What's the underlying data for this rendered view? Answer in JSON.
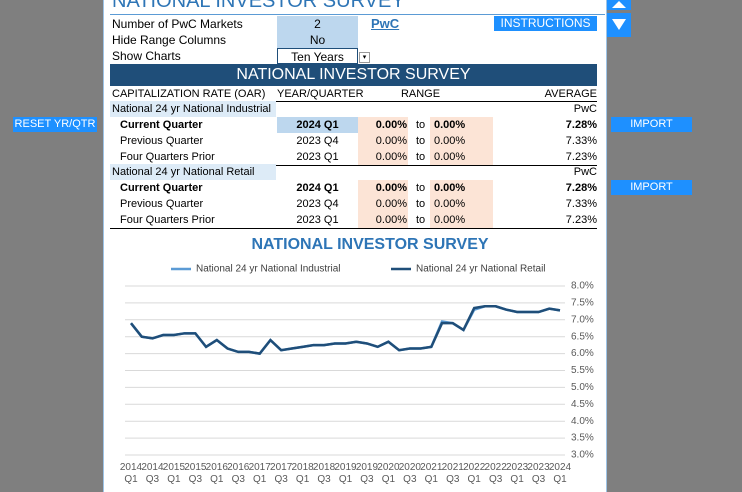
{
  "title": "NATIONAL INVESTOR SURVEY",
  "settings": [
    {
      "label": "Number of PwC Markets",
      "value": "2"
    },
    {
      "label": "Hide Range Columns",
      "value": "No"
    },
    {
      "label": "Show Charts",
      "value": "Ten Years"
    }
  ],
  "link": "PwC",
  "buttons": {
    "instructions": "INSTRUCTIONS",
    "reset": "RESET YR/QTR",
    "import": [
      "IMPORT",
      "IMPORT"
    ]
  },
  "table": {
    "banner": "NATIONAL INVESTOR SURVEY",
    "headers": [
      "CAPITALIZATION RATE (OAR)",
      "YEAR/QUARTER",
      "RANGE",
      "AVERAGE"
    ],
    "groups": [
      {
        "name": "National 24 yr National Industrial",
        "source": "PwC",
        "rows": [
          {
            "label": "Current Quarter",
            "period": "2024 Q1",
            "low": "0.00%",
            "to": "to",
            "high": "0.00%",
            "average": "7.28%"
          },
          {
            "label": "Previous Quarter",
            "period": "2023 Q4",
            "low": "0.00%",
            "to": "to",
            "high": "0.00%",
            "average": "7.33%"
          },
          {
            "label": "Four Quarters Prior",
            "period": "2023 Q1",
            "low": "0.00%",
            "to": "to",
            "high": "0.00%",
            "average": "7.23%"
          }
        ]
      },
      {
        "name": "National 24 yr National Retail",
        "source": "PwC",
        "rows": [
          {
            "label": "Current Quarter",
            "period": "2024 Q1",
            "low": "0.00%",
            "to": "to",
            "high": "0.00%",
            "average": "7.28%"
          },
          {
            "label": "Previous Quarter",
            "period": "2023 Q4",
            "low": "0.00%",
            "to": "to",
            "high": "0.00%",
            "average": "7.33%"
          },
          {
            "label": "Four Quarters Prior",
            "period": "2023 Q1",
            "low": "0.00%",
            "to": "to",
            "high": "0.00%",
            "average": "7.23%"
          }
        ]
      }
    ]
  },
  "chart_data": {
    "type": "line",
    "title": "NATIONAL INVESTOR SURVEY",
    "categories": [
      "2014 Q1",
      null,
      "2014 Q3",
      null,
      "2015 Q1",
      null,
      "2015 Q3",
      null,
      "2016 Q1",
      null,
      "2016 Q3",
      null,
      "2017 Q1",
      null,
      "2017 Q3",
      null,
      "2018 Q1",
      null,
      "2018 Q3",
      null,
      "2019 Q1",
      null,
      "2019 Q3",
      null,
      "2020 Q1",
      null,
      "2020 Q3",
      null,
      "2021 Q1",
      null,
      "2021 Q3",
      null,
      "2022 Q1",
      null,
      "2022 Q3",
      null,
      "2023 Q1",
      null,
      "2023 Q3",
      null,
      "2024 Q1"
    ],
    "series": [
      {
        "name": "National 24 yr National Industrial",
        "color": "#5b9bd5",
        "values": [
          6.9,
          6.5,
          6.45,
          6.55,
          6.55,
          6.6,
          6.6,
          6.2,
          6.4,
          6.15,
          6.05,
          6.05,
          6.0,
          6.4,
          6.1,
          6.15,
          6.2,
          6.25,
          6.25,
          6.3,
          6.3,
          6.35,
          6.3,
          6.2,
          6.35,
          6.1,
          6.15,
          6.15,
          6.2,
          6.95,
          6.9,
          6.7,
          7.3,
          7.4,
          7.4,
          7.3,
          7.23,
          7.23,
          7.23,
          7.33,
          7.28
        ]
      },
      {
        "name": "National 24 yr National Retail",
        "color": "#1f4e79",
        "values": [
          6.9,
          6.5,
          6.45,
          6.55,
          6.55,
          6.6,
          6.6,
          6.2,
          6.4,
          6.15,
          6.05,
          6.05,
          6.0,
          6.4,
          6.1,
          6.15,
          6.2,
          6.25,
          6.25,
          6.3,
          6.3,
          6.35,
          6.3,
          6.2,
          6.35,
          6.1,
          6.15,
          6.15,
          6.2,
          6.9,
          6.9,
          6.7,
          7.35,
          7.4,
          7.4,
          7.3,
          7.23,
          7.23,
          7.23,
          7.33,
          7.28
        ]
      }
    ],
    "ylim": [
      3,
      8
    ],
    "yticks": [
      {
        "value": 3,
        "label": "3.0%"
      },
      {
        "value": 3.5,
        "label": "3.5%"
      },
      {
        "value": 4,
        "label": "4.0%"
      },
      {
        "value": 4.5,
        "label": "4.5%"
      },
      {
        "value": 5,
        "label": "5.0%"
      },
      {
        "value": 5.5,
        "label": "5.5%"
      },
      {
        "value": 6,
        "label": "6.0%"
      },
      {
        "value": 6.5,
        "label": "6.5%"
      },
      {
        "value": 7,
        "label": "7.0%"
      },
      {
        "value": 7.5,
        "label": "7.5%"
      },
      {
        "value": 8,
        "label": "8.0%"
      }
    ],
    "grid": true,
    "legend": "top"
  }
}
